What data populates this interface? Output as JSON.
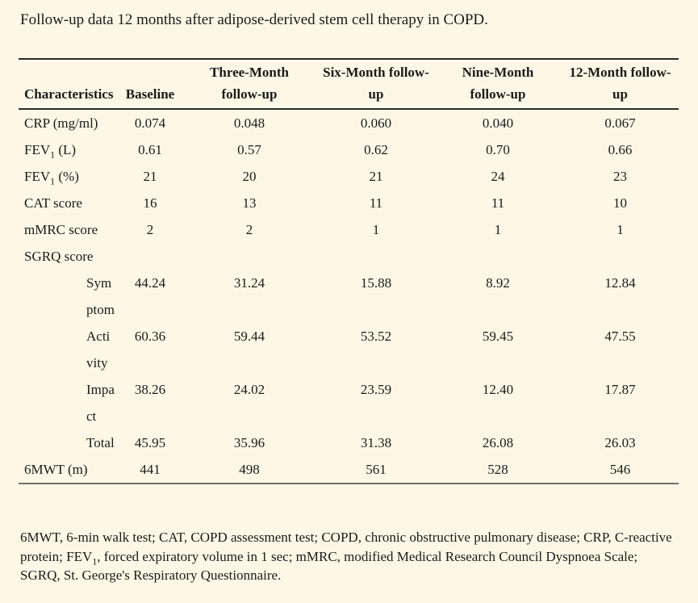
{
  "page": {
    "title": "Follow-up data 12 months after adipose-derived stem cell therapy in COPD.",
    "colors": {
      "background": "#fdf8e6",
      "text": "#1a1a1a",
      "rule_dark": "#2b2b2b",
      "rule_light": "#6e6e6e"
    }
  },
  "table": {
    "columns": [
      {
        "line1": "Characteristics",
        "line2": ""
      },
      {
        "line1": "Baseline",
        "line2": ""
      },
      {
        "line1": "Three-Month",
        "line2": "follow-up"
      },
      {
        "line1": "Six-Month follow-",
        "line2": "up"
      },
      {
        "line1": "Nine-Month",
        "line2": "follow-up"
      },
      {
        "line1": "12-Month follow-",
        "line2": "up"
      }
    ],
    "rows": [
      {
        "pre": "CRP (mg/ml)",
        "sub": "",
        "post": "",
        "line2": "",
        "values": [
          "0.074",
          "0.048",
          "0.060",
          "0.040",
          "0.067"
        ]
      },
      {
        "pre": "FEV",
        "sub": "1",
        "post": " (L)",
        "line2": "",
        "values": [
          "0.61",
          "0.57",
          "0.62",
          "0.70",
          "0.66"
        ]
      },
      {
        "pre": "FEV",
        "sub": "1",
        "post": " (%)",
        "line2": "",
        "values": [
          "21",
          "20",
          "21",
          "24",
          "23"
        ]
      },
      {
        "pre": "CAT score",
        "sub": "",
        "post": "",
        "line2": "",
        "values": [
          "16",
          "13",
          "11",
          "11",
          "10"
        ]
      },
      {
        "pre": "mMRC score",
        "sub": "",
        "post": "",
        "line2": "",
        "values": [
          "2",
          "2",
          "1",
          "1",
          "1"
        ]
      },
      {
        "pre": "SGRQ score",
        "sub": "",
        "post": "",
        "line2": "",
        "values": [
          "",
          "",
          "",
          "",
          ""
        ]
      },
      {
        "pre": "Sym",
        "sub": "",
        "post": "",
        "line2": "ptom",
        "values": [
          "44.24",
          "31.24",
          "15.88",
          "8.92",
          "12.84"
        ]
      },
      {
        "pre": "Acti",
        "sub": "",
        "post": "",
        "line2": "vity",
        "values": [
          "60.36",
          "59.44",
          "53.52",
          "59.45",
          "47.55"
        ]
      },
      {
        "pre": "Impa",
        "sub": "",
        "post": "",
        "line2": "ct",
        "values": [
          "38.26",
          "24.02",
          "23.59",
          "12.40",
          "17.87"
        ]
      },
      {
        "pre": "Total",
        "sub": "",
        "post": "",
        "line2": "",
        "values": [
          "45.95",
          "35.96",
          "31.38",
          "26.08",
          "26.03"
        ]
      },
      {
        "pre": "6MWT (m)",
        "sub": "",
        "post": "",
        "line2": "",
        "values": [
          "441",
          "498",
          "561",
          "528",
          "546"
        ]
      }
    ]
  },
  "footnote": {
    "part1": "6MWT, 6-min walk test; CAT, COPD assessment test; COPD, chronic obstructive pulmonary disease; CRP, C-reactive protein; FEV",
    "sub": "1",
    "part2": ", forced expiratory volume in 1 sec; mMRC, modified Medical Research Council Dyspnoea Scale; SGRQ, St. George's Respiratory Questionnaire."
  }
}
